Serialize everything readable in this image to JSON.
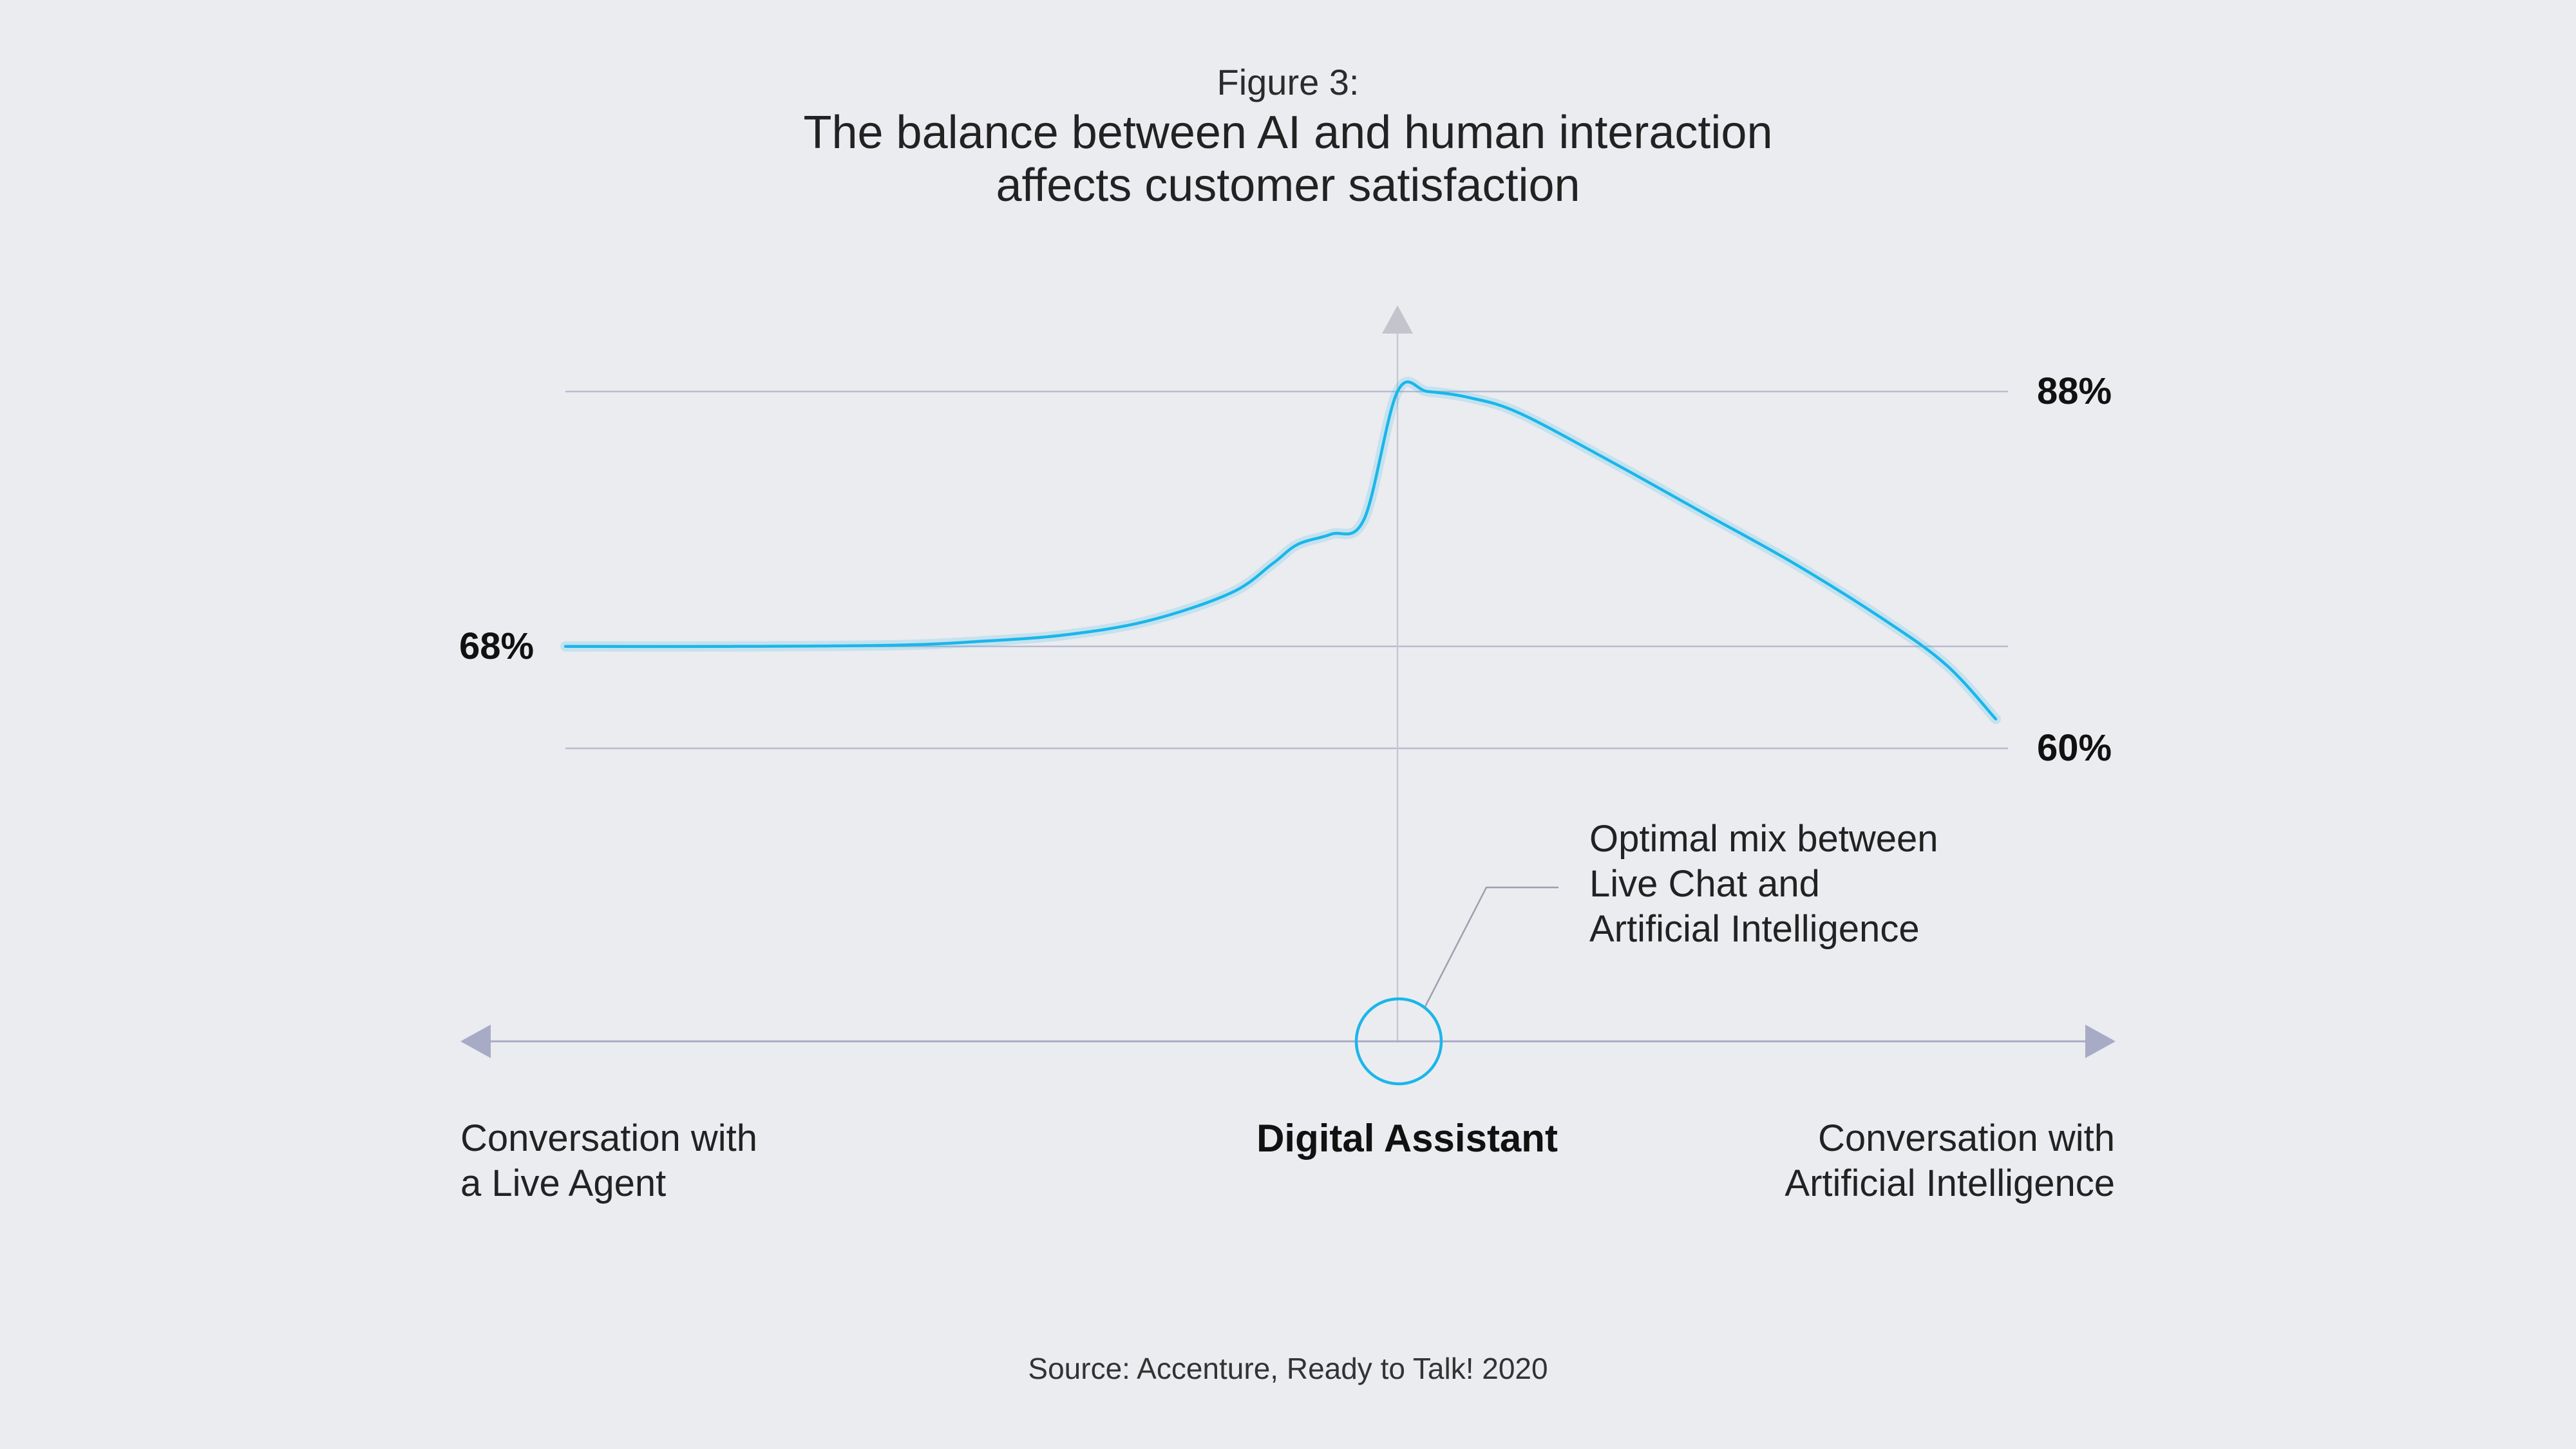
{
  "figure_label": "Figure 3:",
  "title_lines": [
    "The balance between AI and human interaction",
    "affects customer satisfaction"
  ],
  "source": "Source: Accenture, Ready to Talk! 2020",
  "colors": {
    "background": "#ebecf0",
    "curve": "#1ab6ea",
    "grid": "#b9bbd0",
    "axis_arrow": "#a8abc6",
    "center_axis": "#c8c9d0"
  },
  "chart_data": {
    "type": "line",
    "title": "The balance between AI and human interaction affects customer satisfaction",
    "xlabel": "",
    "ylabel": "",
    "x_axis_labels": {
      "left": [
        "Conversation with",
        "a Live Agent"
      ],
      "center": "Digital Assistant",
      "right": [
        "Conversation with",
        "Artificial Intelligence"
      ]
    },
    "y_markers": [
      {
        "value": 88,
        "label": "88%",
        "side": "right"
      },
      {
        "value": 68,
        "label": "68%",
        "side": "left"
      },
      {
        "value": 60,
        "label": "60%",
        "side": "right"
      }
    ],
    "ylim": [
      60,
      88
    ],
    "xlim": [
      -1,
      1
    ],
    "grid": true,
    "series": [
      {
        "x": [
          -1,
          -0.8,
          -0.6,
          -0.5,
          -0.4,
          -0.3,
          -0.2,
          -0.15,
          -0.12,
          -0.08,
          -0.04,
          0,
          0.05,
          0.12,
          0.2,
          0.35,
          0.5,
          0.65,
          0.8,
          0.9,
          0.98
        ],
        "values": [
          68,
          68,
          68.1,
          68.4,
          68.9,
          70,
          72.2,
          74.5,
          76,
          76.8,
          78,
          88,
          88,
          87.5,
          86.3,
          82.5,
          78.5,
          74.5,
          70,
          66.5,
          62.3
        ]
      }
    ],
    "annotation": {
      "text": [
        "Optimal mix between",
        "Live Chat and",
        "Artificial Intelligence"
      ],
      "points_to": "Digital Assistant"
    }
  }
}
